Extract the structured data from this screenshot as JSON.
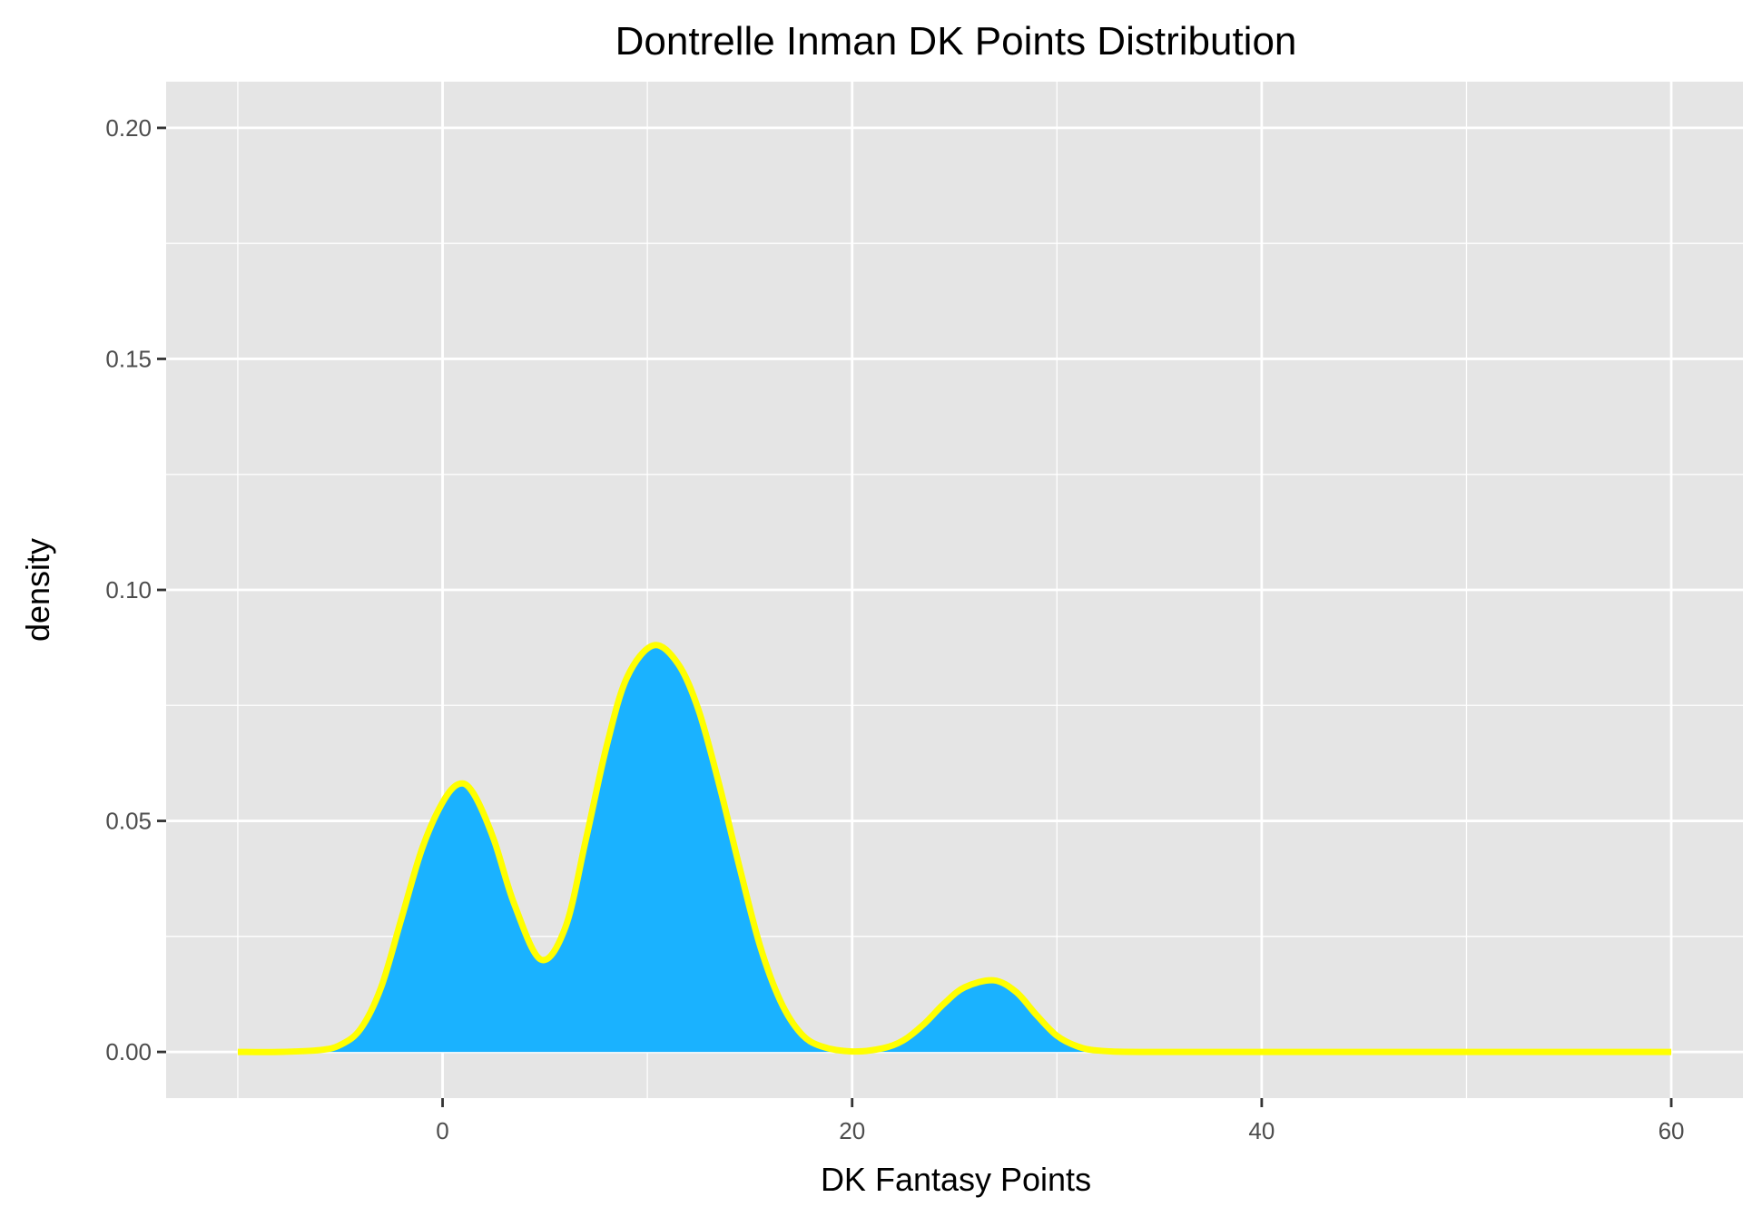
{
  "chart_data": {
    "type": "area",
    "title": "Dontrelle Inman DK Points Distribution",
    "xlabel": "DK Fantasy Points",
    "ylabel": "density",
    "xlim": [
      -13.5,
      63.5
    ],
    "ylim": [
      -0.01,
      0.21
    ],
    "x_ticks": [
      0,
      20,
      40,
      60
    ],
    "x_tick_labels": [
      "0",
      "20",
      "40",
      "60"
    ],
    "x_minor": [
      -10,
      10,
      30,
      50
    ],
    "y_ticks": [
      0.0,
      0.05,
      0.1,
      0.15,
      0.2
    ],
    "y_tick_labels": [
      "0.00",
      "0.05",
      "0.10",
      "0.15",
      "0.20"
    ],
    "y_minor": [
      0.025,
      0.075,
      0.125,
      0.175
    ],
    "grid": true,
    "panel_color": "#e5e5e5",
    "grid_color": "#ffffff",
    "fill_color": "#1ab2ff",
    "line_color": "#ffff00",
    "series": [
      {
        "x": [
          -10,
          -8,
          -6,
          -5,
          -4,
          -3,
          -2,
          -1,
          0,
          0.8,
          1.5,
          2.5,
          3.5,
          4.8,
          6,
          7,
          8,
          9,
          10.3,
          11.5,
          12.5,
          13.5,
          14.5,
          15.5,
          16.5,
          17.5,
          18.5,
          20,
          21.5,
          22.5,
          23.5,
          24.5,
          25.5,
          26.9,
          28,
          29,
          30,
          31,
          32,
          34,
          40,
          50,
          60
        ],
        "y": [
          0.0,
          0.0,
          0.0004,
          0.0015,
          0.005,
          0.014,
          0.029,
          0.044,
          0.054,
          0.058,
          0.056,
          0.046,
          0.032,
          0.02,
          0.027,
          0.046,
          0.066,
          0.081,
          0.088,
          0.084,
          0.074,
          0.058,
          0.04,
          0.023,
          0.011,
          0.004,
          0.0012,
          0.0001,
          0.0008,
          0.0025,
          0.006,
          0.0105,
          0.014,
          0.0155,
          0.013,
          0.008,
          0.0035,
          0.0012,
          0.0003,
          0.0,
          0.0,
          0.0,
          0.0
        ]
      }
    ]
  }
}
